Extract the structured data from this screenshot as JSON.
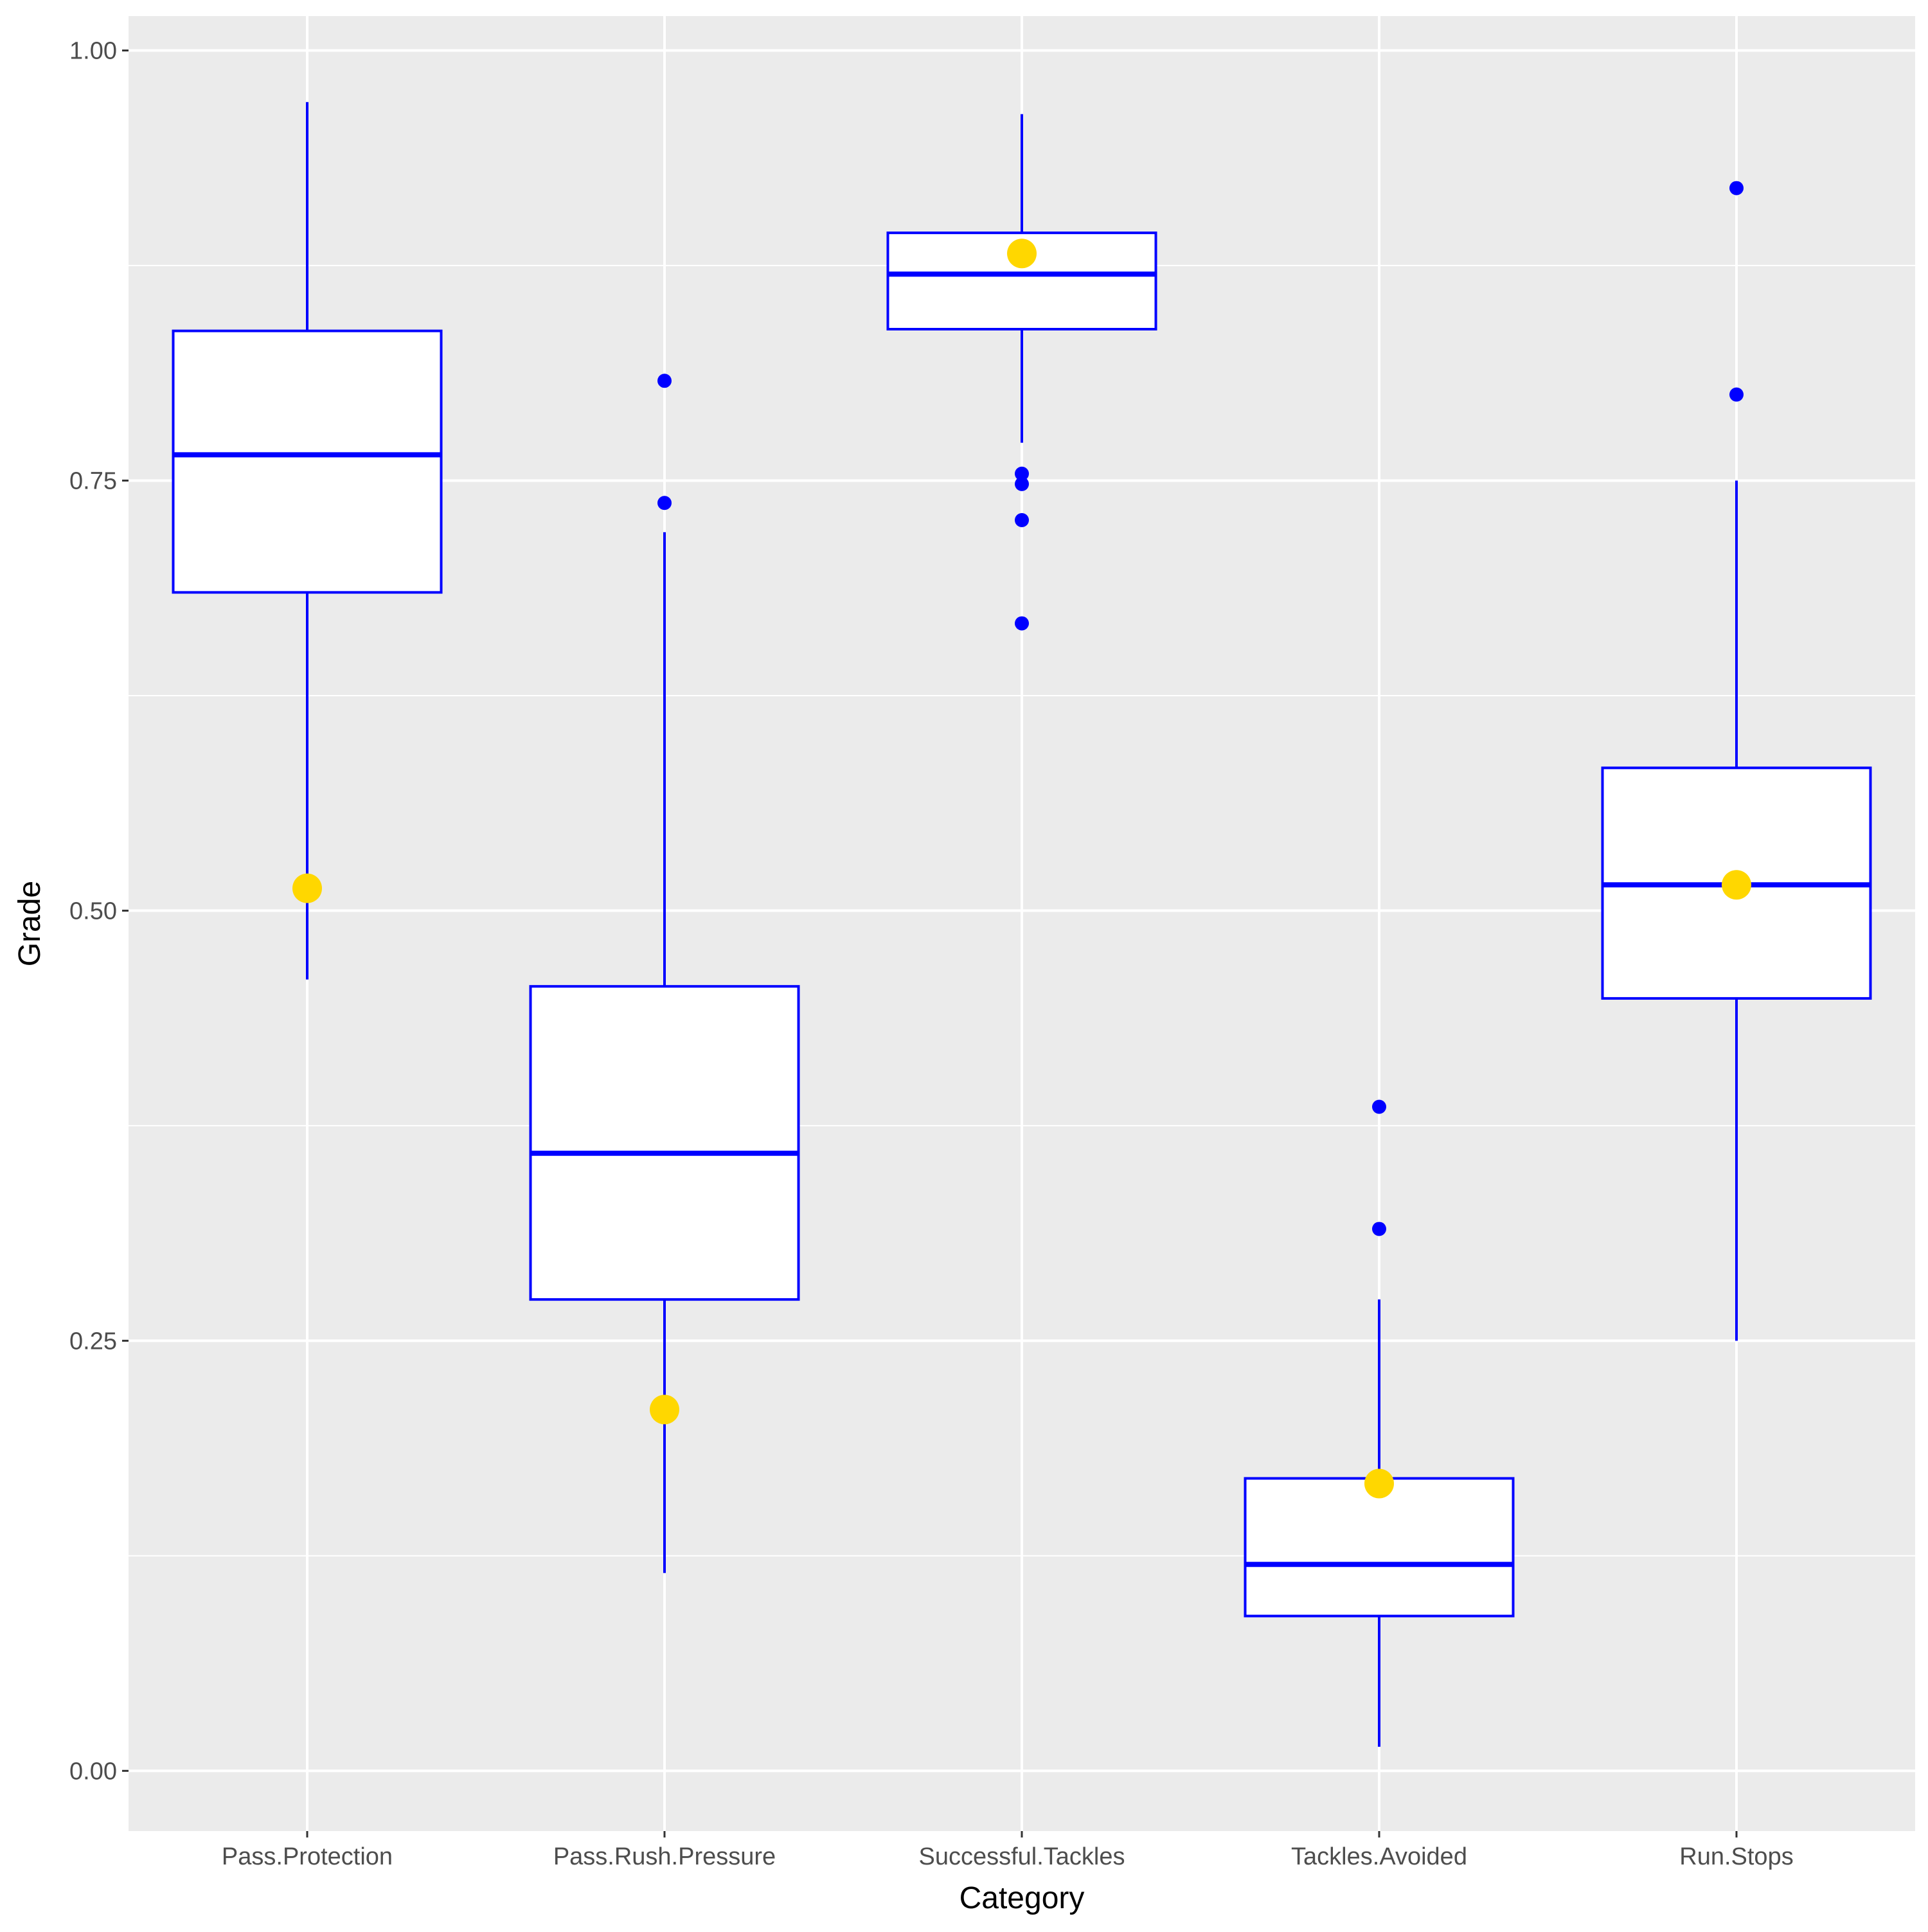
{
  "chart_data": {
    "type": "box",
    "title": "",
    "xlabel": "Category",
    "ylabel": "Grade",
    "ylim": [
      -0.035,
      1.02
    ],
    "yticks": [
      0.0,
      0.25,
      0.5,
      0.75,
      1.0
    ],
    "ytick_labels": [
      "0.00",
      "0.25",
      "0.50",
      "0.75",
      "1.00"
    ],
    "grid": true,
    "legend": "none",
    "categories": [
      "Pass.Protection",
      "Pass.Rush.Pressure",
      "Successful.Tackles",
      "Tackles.Avoided",
      "Run.Stops"
    ],
    "boxes": [
      {
        "category": "Pass.Protection",
        "whisker_low": 0.46,
        "q1": 0.685,
        "median": 0.765,
        "q3": 0.837,
        "whisker_high": 0.97,
        "outliers": [],
        "highlight": 0.513
      },
      {
        "category": "Pass.Rush.Pressure",
        "whisker_low": 0.115,
        "q1": 0.274,
        "median": 0.359,
        "q3": 0.456,
        "whisker_high": 0.72,
        "outliers": [
          0.808,
          0.737
        ],
        "highlight": 0.21
      },
      {
        "category": "Successful.Tackles",
        "whisker_low": 0.772,
        "q1": 0.838,
        "median": 0.87,
        "q3": 0.894,
        "whisker_high": 0.963,
        "outliers": [
          0.754,
          0.748,
          0.727,
          0.667
        ],
        "highlight": 0.882
      },
      {
        "category": "Tackles.Avoided",
        "whisker_low": 0.014,
        "q1": 0.09,
        "median": 0.12,
        "q3": 0.17,
        "whisker_high": 0.274,
        "outliers": [
          0.386,
          0.315
        ],
        "highlight": 0.167
      },
      {
        "category": "Run.Stops",
        "whisker_low": 0.25,
        "q1": 0.449,
        "median": 0.515,
        "q3": 0.583,
        "whisker_high": 0.75,
        "outliers": [
          0.92,
          0.8
        ],
        "highlight": 0.515
      }
    ],
    "colors": {
      "box_outline": "#0000ff",
      "box_fill": "#ffffff",
      "highlight": "#ffd700",
      "panel": "#ebebeb",
      "grid": "#ffffff"
    }
  }
}
